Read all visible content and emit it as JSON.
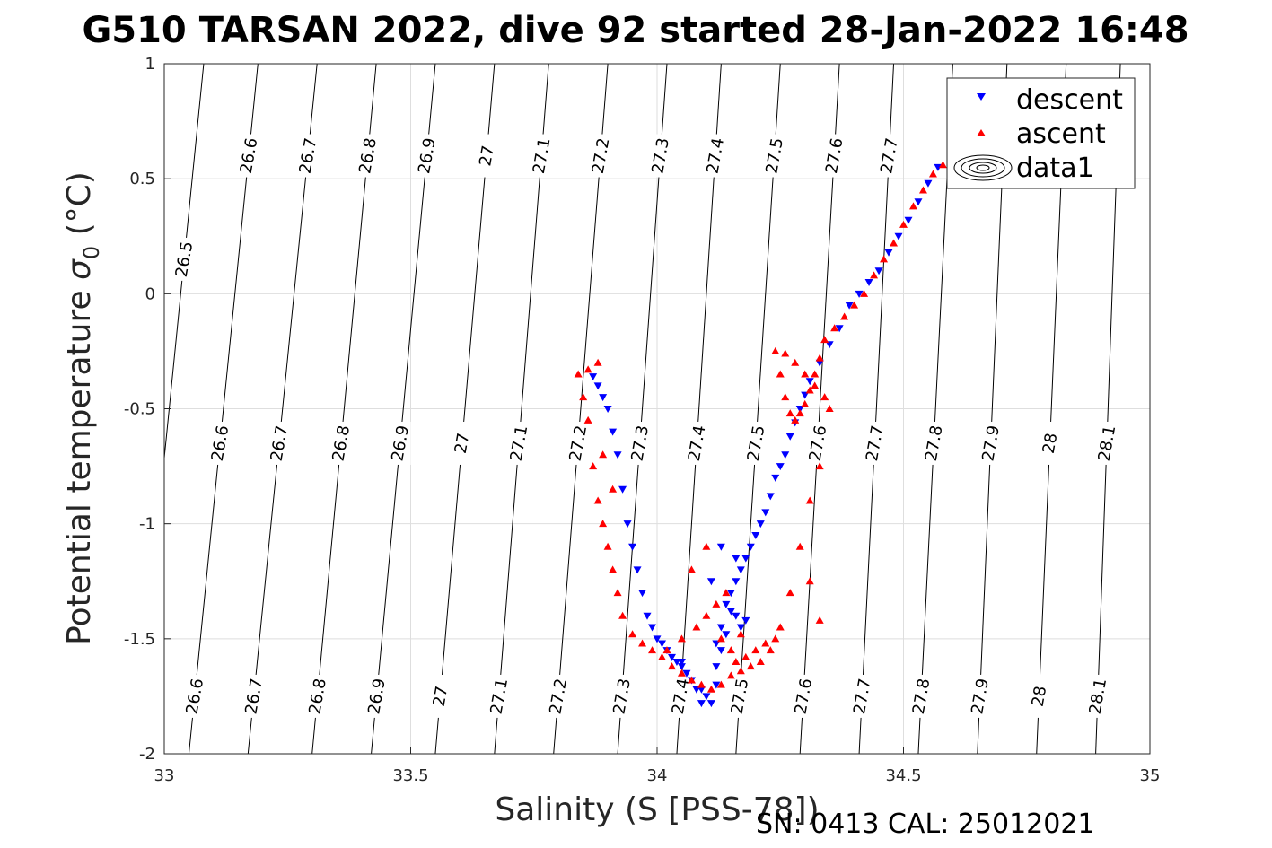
{
  "chart_data": {
    "type": "scatter",
    "title": "G510 TARSAN 2022, dive 92 started 28-Jan-2022 16:48",
    "xlabel": "Salinity (S [PSS-78])",
    "ylabel_main": "Potential temperature ",
    "ylabel_symbol": "σ",
    "ylabel_sub": "0",
    "ylabel_unit": " (°C)",
    "xlim": [
      33,
      35
    ],
    "ylim": [
      -2,
      1
    ],
    "xticks": [
      33,
      33.5,
      34,
      34.5,
      35
    ],
    "xtick_labels": [
      "33",
      "33.5",
      "34",
      "34.5",
      "35"
    ],
    "yticks": [
      1,
      0.5,
      0,
      -0.5,
      -1,
      -1.5,
      -2
    ],
    "ytick_labels": [
      "1",
      "0.5",
      "0",
      "-0.5",
      "-1",
      "-1.5",
      "-2"
    ],
    "grid": true,
    "legend_position": "top-right",
    "footer": "SN: 0413  CAL: 25012021",
    "density_contours": {
      "levels": [
        "26.5",
        "26.6",
        "26.7",
        "26.8",
        "26.9",
        "27",
        "27.1",
        "27.2",
        "27.3",
        "27.4",
        "27.5",
        "27.6",
        "27.7",
        "27.8",
        "27.9",
        "28",
        "28.1"
      ],
      "salinity_at_minus2": [
        32.94,
        33.05,
        33.17,
        33.3,
        33.42,
        33.55,
        33.67,
        33.79,
        33.92,
        34.04,
        34.16,
        34.29,
        34.41,
        34.53,
        34.65,
        34.77,
        34.89
      ],
      "salinity_at_plus1": [
        33.08,
        33.19,
        33.31,
        33.43,
        33.55,
        33.67,
        33.78,
        33.9,
        34.02,
        34.13,
        34.25,
        34.37,
        34.48,
        34.6,
        34.71,
        34.83,
        34.94
      ],
      "labels_top_row": [
        "26.5",
        "26.6",
        "26.7",
        "26.8",
        "26.9",
        "27",
        "27.1",
        "27.2",
        "27.3",
        "27.4",
        "27.5",
        "27.6",
        "27.7"
      ],
      "labels_middle_row": [
        "26.6",
        "26.7",
        "26.8",
        "26.9",
        "27",
        "27.1",
        "27.2",
        "27.3",
        "27.4",
        "27.5",
        "27.6",
        "27.7",
        "27.8",
        "27.9",
        "28",
        "28.1"
      ],
      "labels_bottom_row": [
        "26.6",
        "26.7",
        "26.8",
        "26.9",
        "27",
        "27.1",
        "27.2",
        "27.3",
        "27.4",
        "27.5",
        "27.6",
        "27.7",
        "27.8",
        "27.9",
        "28",
        "28.1"
      ]
    },
    "series": [
      {
        "name": "descent",
        "color": "#0000ff",
        "marker": "triangle-down",
        "x": [
          34.57,
          34.55,
          34.53,
          34.51,
          34.49,
          34.47,
          34.45,
          34.43,
          34.41,
          34.39,
          34.37,
          34.35,
          34.33,
          34.31,
          34.3,
          34.29,
          34.28,
          34.27,
          34.26,
          34.25,
          34.24,
          34.23,
          34.22,
          34.21,
          34.2,
          34.19,
          34.18,
          34.17,
          34.16,
          34.15,
          34.16,
          34.17,
          34.18,
          34.14,
          34.13,
          34.12,
          34.14,
          34.16,
          34.13,
          34.11,
          34.12,
          34.1,
          34.09,
          34.08,
          34.07,
          34.06,
          34.05,
          34.04,
          34.03,
          34.02,
          34.01,
          34.0,
          33.99,
          33.98,
          33.97,
          33.96,
          33.95,
          33.94,
          33.93,
          33.92,
          33.91,
          33.9,
          33.89,
          33.88,
          33.87,
          34.05,
          34.09,
          34.11,
          34.13,
          34.15,
          34.12
        ],
        "y": [
          0.55,
          0.48,
          0.4,
          0.32,
          0.25,
          0.18,
          0.1,
          0.05,
          0.0,
          -0.05,
          -0.15,
          -0.22,
          -0.3,
          -0.38,
          -0.44,
          -0.5,
          -0.56,
          -0.62,
          -0.7,
          -0.75,
          -0.8,
          -0.88,
          -0.95,
          -1.0,
          -1.05,
          -1.1,
          -1.15,
          -1.2,
          -1.25,
          -1.3,
          -1.4,
          -1.45,
          -1.42,
          -1.48,
          -1.55,
          -1.62,
          -1.35,
          -1.15,
          -1.1,
          -1.25,
          -1.7,
          -1.75,
          -1.78,
          -1.72,
          -1.68,
          -1.65,
          -1.62,
          -1.6,
          -1.58,
          -1.55,
          -1.52,
          -1.5,
          -1.45,
          -1.4,
          -1.3,
          -1.2,
          -1.1,
          -1.0,
          -0.85,
          -0.7,
          -0.6,
          -0.5,
          -0.45,
          -0.4,
          -0.36,
          -1.6,
          -1.72,
          -1.78,
          -1.45,
          -1.38,
          -1.52
        ]
      },
      {
        "name": "ascent",
        "color": "#ff0000",
        "marker": "triangle-up",
        "x": [
          34.58,
          34.56,
          34.54,
          34.52,
          34.5,
          34.48,
          34.46,
          34.44,
          34.42,
          34.4,
          34.38,
          34.36,
          34.34,
          34.33,
          34.32,
          34.31,
          34.3,
          34.29,
          34.28,
          34.27,
          34.26,
          34.25,
          34.24,
          34.26,
          34.28,
          34.3,
          34.32,
          34.34,
          34.35,
          34.33,
          34.31,
          34.29,
          34.27,
          34.25,
          34.23,
          34.21,
          34.19,
          34.17,
          34.15,
          34.13,
          34.11,
          34.09,
          34.07,
          34.05,
          34.03,
          34.01,
          33.99,
          33.97,
          33.95,
          33.93,
          33.92,
          33.91,
          33.9,
          33.89,
          33.88,
          33.87,
          33.86,
          33.85,
          33.84,
          33.86,
          33.88,
          34.02,
          34.05,
          34.08,
          34.1,
          34.12,
          34.14,
          34.16,
          34.18,
          34.2,
          34.22,
          34.24,
          33.89,
          33.91,
          34.31,
          34.33,
          34.07,
          34.1,
          34.13,
          34.15,
          34.17
        ],
        "y": [
          0.56,
          0.52,
          0.45,
          0.38,
          0.3,
          0.22,
          0.15,
          0.08,
          0.0,
          -0.05,
          -0.1,
          -0.15,
          -0.2,
          -0.28,
          -0.35,
          -0.42,
          -0.48,
          -0.52,
          -0.55,
          -0.52,
          -0.45,
          -0.35,
          -0.25,
          -0.26,
          -0.3,
          -0.35,
          -0.4,
          -0.45,
          -0.5,
          -0.75,
          -0.9,
          -1.1,
          -1.3,
          -1.45,
          -1.55,
          -1.6,
          -1.62,
          -1.64,
          -1.66,
          -1.7,
          -1.72,
          -1.7,
          -1.68,
          -1.65,
          -1.62,
          -1.58,
          -1.55,
          -1.52,
          -1.48,
          -1.4,
          -1.3,
          -1.2,
          -1.1,
          -1.0,
          -0.9,
          -0.75,
          -0.55,
          -0.45,
          -0.35,
          -0.33,
          -0.3,
          -1.55,
          -1.5,
          -1.45,
          -1.4,
          -1.35,
          -1.3,
          -1.6,
          -1.58,
          -1.55,
          -1.52,
          -1.5,
          -0.7,
          -0.85,
          -1.25,
          -1.42,
          -1.2,
          -1.1,
          -1.5,
          -1.55,
          -1.48
        ]
      },
      {
        "name": "data1"
      }
    ]
  }
}
